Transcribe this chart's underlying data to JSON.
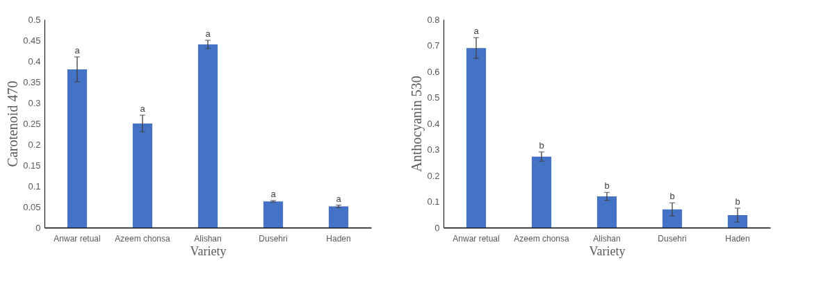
{
  "chart_data": [
    {
      "type": "bar",
      "xlabel": "Variety",
      "ylabel": "Carotenoid 470",
      "categories": [
        "Anwar retual",
        "Azeem chonsa",
        "Alishan",
        "Dusehri",
        "Haden"
      ],
      "series": [
        {
          "color": "#4472c4",
          "values": [
            0.38,
            0.25,
            0.44,
            0.063,
            0.051
          ],
          "errors": [
            0.03,
            0.02,
            0.01,
            0.002,
            0.003
          ]
        }
      ],
      "ylim": [
        0,
        0.5
      ],
      "yticks": [
        0,
        0.05,
        0.1,
        0.15,
        0.2,
        0.25,
        0.3,
        0.35,
        0.4,
        0.45,
        0.5
      ],
      "grid": false,
      "legend": false,
      "annotations": [
        {
          "text": "a",
          "x": "Anwar retual",
          "y": 0.41
        },
        {
          "text": "a",
          "x": "Azeem chonsa",
          "y": 0.27
        },
        {
          "text": "a",
          "x": "Alishan",
          "y": 0.45
        },
        {
          "text": "a",
          "x": "Dusehri",
          "y": 0.065
        },
        {
          "text": "a",
          "x": "Haden",
          "y": 0.054
        }
      ]
    },
    {
      "type": "bar",
      "xlabel": "Variety",
      "ylabel": "Anthocyanin 530",
      "categories": [
        "Anwar retual",
        "Azeem chonsa",
        "Alishan",
        "Dusehri",
        "Haden"
      ],
      "series": [
        {
          "color": "#4472c4",
          "values": [
            0.69,
            0.273,
            0.12,
            0.07,
            0.048
          ],
          "errors": [
            0.04,
            0.018,
            0.015,
            0.025,
            0.027
          ]
        }
      ],
      "ylim": [
        0,
        0.8
      ],
      "yticks": [
        0,
        0.1,
        0.2,
        0.3,
        0.4,
        0.5,
        0.6,
        0.7,
        0.8
      ],
      "grid": false,
      "legend": false,
      "annotations": [
        {
          "text": "a",
          "x": "Anwar retual",
          "y": 0.73
        },
        {
          "text": "b",
          "x": "Azeem chonsa",
          "y": 0.291
        },
        {
          "text": "b",
          "x": "Alishan",
          "y": 0.135
        },
        {
          "text": "b",
          "x": "Dusehri",
          "y": 0.095
        },
        {
          "text": "b",
          "x": "Haden",
          "y": 0.075
        }
      ]
    }
  ]
}
